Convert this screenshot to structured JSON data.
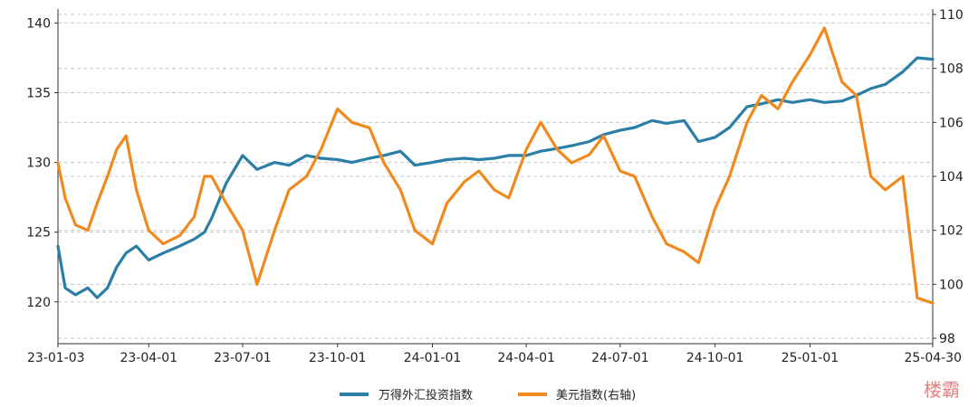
{
  "chart_data": {
    "type": "line",
    "title": "",
    "xlabel": "",
    "ylabel": "",
    "x_ticks": [
      "23-01-03",
      "23-04-01",
      "23-07-01",
      "23-10-01",
      "24-01-01",
      "24-04-01",
      "24-07-01",
      "24-10-01",
      "25-01-01",
      "25-04-30"
    ],
    "left_axis": {
      "ylim": [
        117,
        141
      ],
      "ticks": [
        120,
        125,
        130,
        135,
        140
      ]
    },
    "right_axis": {
      "ylim": [
        97.8,
        110.2
      ],
      "ticks": [
        98,
        100,
        102,
        104,
        106,
        108,
        110
      ]
    },
    "grid": true,
    "legend_position": "bottom-center",
    "series": [
      {
        "name": "万得外汇投资指数",
        "axis": "left",
        "color": "#2b7ea6",
        "points": [
          [
            "23-01-03",
            124.0
          ],
          [
            "23-01-10",
            121.0
          ],
          [
            "23-01-20",
            120.5
          ],
          [
            "23-02-01",
            121.0
          ],
          [
            "23-02-10",
            120.3
          ],
          [
            "23-02-20",
            121.0
          ],
          [
            "23-03-01",
            122.5
          ],
          [
            "23-03-10",
            123.5
          ],
          [
            "23-03-20",
            124.0
          ],
          [
            "23-04-01",
            123.0
          ],
          [
            "23-04-15",
            123.5
          ],
          [
            "23-05-01",
            124.0
          ],
          [
            "23-05-15",
            124.5
          ],
          [
            "23-05-25",
            125.0
          ],
          [
            "23-06-01",
            126.0
          ],
          [
            "23-06-15",
            128.5
          ],
          [
            "23-07-01",
            130.5
          ],
          [
            "23-07-15",
            129.5
          ],
          [
            "23-08-01",
            130.0
          ],
          [
            "23-08-15",
            129.8
          ],
          [
            "23-09-01",
            130.5
          ],
          [
            "23-09-15",
            130.3
          ],
          [
            "23-10-01",
            130.2
          ],
          [
            "23-10-15",
            130.0
          ],
          [
            "23-11-01",
            130.3
          ],
          [
            "23-11-15",
            130.5
          ],
          [
            "23-12-01",
            130.8
          ],
          [
            "23-12-15",
            129.8
          ],
          [
            "24-01-01",
            130.0
          ],
          [
            "24-01-15",
            130.2
          ],
          [
            "24-02-01",
            130.3
          ],
          [
            "24-02-15",
            130.2
          ],
          [
            "24-03-01",
            130.3
          ],
          [
            "24-03-15",
            130.5
          ],
          [
            "24-04-01",
            130.5
          ],
          [
            "24-04-15",
            130.8
          ],
          [
            "24-05-01",
            131.0
          ],
          [
            "24-05-15",
            131.2
          ],
          [
            "24-06-01",
            131.5
          ],
          [
            "24-06-15",
            132.0
          ],
          [
            "24-07-01",
            132.3
          ],
          [
            "24-07-15",
            132.5
          ],
          [
            "24-08-01",
            133.0
          ],
          [
            "24-08-15",
            132.8
          ],
          [
            "24-09-01",
            133.0
          ],
          [
            "24-09-15",
            131.5
          ],
          [
            "24-10-01",
            131.8
          ],
          [
            "24-10-15",
            132.5
          ],
          [
            "24-11-01",
            134.0
          ],
          [
            "24-11-15",
            134.2
          ],
          [
            "24-12-01",
            134.5
          ],
          [
            "24-12-15",
            134.3
          ],
          [
            "25-01-01",
            134.5
          ],
          [
            "25-01-15",
            134.3
          ],
          [
            "25-02-01",
            134.4
          ],
          [
            "25-02-15",
            134.8
          ],
          [
            "25-03-01",
            135.3
          ],
          [
            "25-03-15",
            135.6
          ],
          [
            "25-04-01",
            136.5
          ],
          [
            "25-04-15",
            137.5
          ],
          [
            "25-04-30",
            137.4
          ]
        ]
      },
      {
        "name": "美元指数(右轴)",
        "axis": "right",
        "color": "#f08a1e",
        "points": [
          [
            "23-01-03",
            104.5
          ],
          [
            "23-01-10",
            103.2
          ],
          [
            "23-01-20",
            102.2
          ],
          [
            "23-02-01",
            102.0
          ],
          [
            "23-02-10",
            103.0
          ],
          [
            "23-02-20",
            104.0
          ],
          [
            "23-03-01",
            105.0
          ],
          [
            "23-03-10",
            105.5
          ],
          [
            "23-03-20",
            103.5
          ],
          [
            "23-04-01",
            102.0
          ],
          [
            "23-04-15",
            101.5
          ],
          [
            "23-05-01",
            101.8
          ],
          [
            "23-05-15",
            102.5
          ],
          [
            "23-05-25",
            104.0
          ],
          [
            "23-06-01",
            104.0
          ],
          [
            "23-06-15",
            103.0
          ],
          [
            "23-07-01",
            102.0
          ],
          [
            "23-07-15",
            100.0
          ],
          [
            "23-08-01",
            102.0
          ],
          [
            "23-08-15",
            103.5
          ],
          [
            "23-09-01",
            104.0
          ],
          [
            "23-09-15",
            105.0
          ],
          [
            "23-10-01",
            106.5
          ],
          [
            "23-10-15",
            106.0
          ],
          [
            "23-11-01",
            105.8
          ],
          [
            "23-11-15",
            104.5
          ],
          [
            "23-12-01",
            103.5
          ],
          [
            "23-12-15",
            102.0
          ],
          [
            "24-01-01",
            101.5
          ],
          [
            "24-01-15",
            103.0
          ],
          [
            "24-02-01",
            103.8
          ],
          [
            "24-02-15",
            104.2
          ],
          [
            "24-03-01",
            103.5
          ],
          [
            "24-03-15",
            103.2
          ],
          [
            "24-04-01",
            105.0
          ],
          [
            "24-04-15",
            106.0
          ],
          [
            "24-05-01",
            105.0
          ],
          [
            "24-05-15",
            104.5
          ],
          [
            "24-06-01",
            104.8
          ],
          [
            "24-06-15",
            105.5
          ],
          [
            "24-07-01",
            104.2
          ],
          [
            "24-07-15",
            104.0
          ],
          [
            "24-08-01",
            102.5
          ],
          [
            "24-08-15",
            101.5
          ],
          [
            "24-09-01",
            101.2
          ],
          [
            "24-09-15",
            100.8
          ],
          [
            "24-10-01",
            102.8
          ],
          [
            "24-10-15",
            104.0
          ],
          [
            "24-11-01",
            106.0
          ],
          [
            "24-11-15",
            107.0
          ],
          [
            "24-12-01",
            106.5
          ],
          [
            "24-12-15",
            107.5
          ],
          [
            "25-01-01",
            108.5
          ],
          [
            "25-01-15",
            109.5
          ],
          [
            "25-02-01",
            107.5
          ],
          [
            "25-02-15",
            107.0
          ],
          [
            "25-03-01",
            104.0
          ],
          [
            "25-03-15",
            103.5
          ],
          [
            "25-04-01",
            104.0
          ],
          [
            "25-04-15",
            99.5
          ],
          [
            "25-04-30",
            99.3
          ]
        ]
      }
    ]
  },
  "watermark": "楼霸"
}
